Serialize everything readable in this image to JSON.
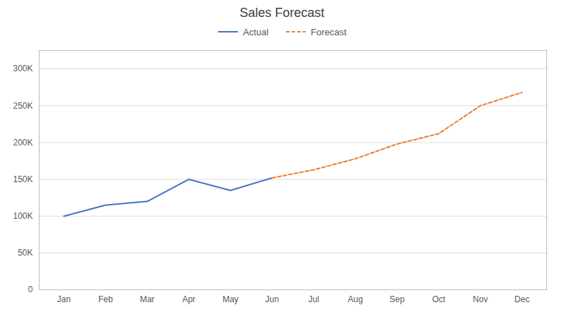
{
  "chart_data": {
    "type": "line",
    "title": "Sales Forecast",
    "categories": [
      "Jan",
      "Feb",
      "Mar",
      "Apr",
      "May",
      "Jun",
      "Jul",
      "Aug",
      "Sep",
      "Oct",
      "Nov",
      "Dec"
    ],
    "series": [
      {
        "name": "Actual",
        "color": "#4472C4",
        "line_style": "solid",
        "values": [
          100000,
          115000,
          120000,
          150000,
          135000,
          152000,
          null,
          null,
          null,
          null,
          null,
          null
        ]
      },
      {
        "name": "Forecast",
        "color": "#ED7D31",
        "line_style": "dashed",
        "values": [
          null,
          null,
          null,
          null,
          null,
          152000,
          163000,
          178000,
          198000,
          212000,
          250000,
          268000
        ]
      }
    ],
    "ylim": [
      0,
      325000
    ],
    "yticks": [
      0,
      {
        "value": 50000,
        "label": "50K"
      },
      {
        "value": 100000,
        "label": "100K"
      },
      {
        "value": 150000,
        "label": "150K"
      },
      {
        "value": 200000,
        "label": "200K"
      },
      {
        "value": 250000,
        "label": "250K"
      },
      {
        "value": 300000,
        "label": "300K"
      }
    ],
    "grid": true,
    "legend": "top"
  }
}
